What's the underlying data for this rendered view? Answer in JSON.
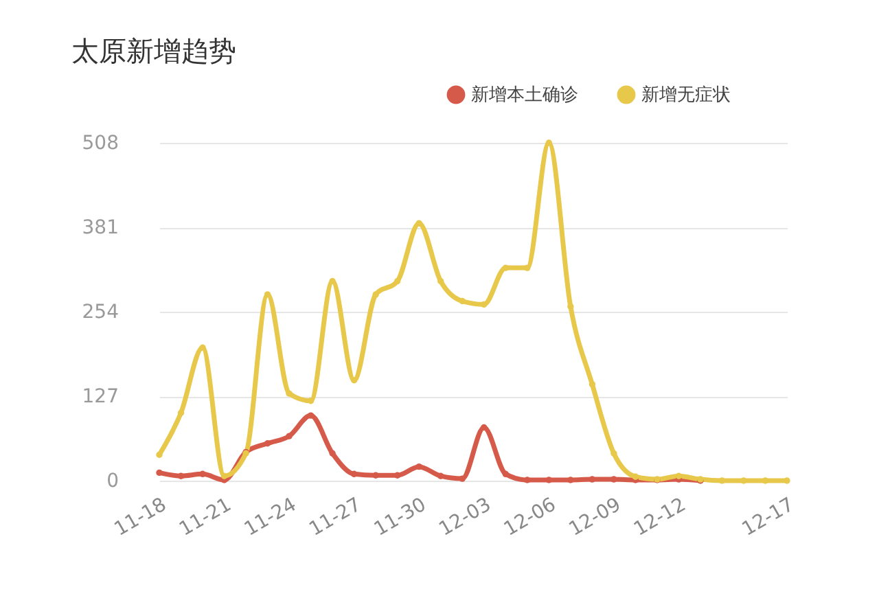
{
  "chart_data": {
    "type": "line",
    "title": "太原新增趋势",
    "categories": [
      "11-18",
      null,
      null,
      "11-21",
      null,
      null,
      "11-24",
      null,
      null,
      "11-27",
      null,
      null,
      "11-30",
      null,
      null,
      "12-03",
      null,
      null,
      "12-06",
      null,
      null,
      "12-09",
      null,
      null,
      "12-12",
      null,
      null,
      null,
      null,
      "12-17"
    ],
    "series": [
      {
        "name": "新增本土确诊",
        "color": "#d65a4a",
        "values": [
          12,
          7,
          10,
          1,
          43,
          56,
          67,
          98,
          41,
          10,
          8,
          8,
          21,
          7,
          3,
          80,
          10,
          1,
          1,
          1,
          2,
          2,
          1,
          1,
          2,
          0,
          null,
          null,
          null,
          null
        ]
      },
      {
        "name": "新增无症状",
        "color": "#e8c84a",
        "values": [
          39,
          102,
          200,
          7,
          41,
          280,
          131,
          120,
          300,
          151,
          280,
          300,
          387,
          300,
          270,
          265,
          320,
          320,
          508,
          262,
          145,
          41,
          6,
          2,
          7,
          2,
          0,
          0,
          0,
          0
        ]
      }
    ],
    "ylim": [
      0,
      508
    ],
    "yticks": [
      0,
      127,
      254,
      381,
      508
    ],
    "grid": "y",
    "legend": "top right",
    "marker": "circle",
    "line_style": "solid"
  }
}
